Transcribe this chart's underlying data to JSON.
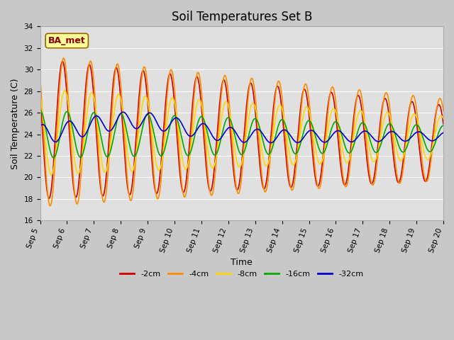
{
  "title": "Soil Temperatures Set B",
  "xlabel": "Time",
  "ylabel": "Soil Temperature (C)",
  "ylim": [
    16,
    34
  ],
  "annotation_text": "BA_met",
  "annotation_color": "#8B0000",
  "annotation_bg": "#FFFF99",
  "series_colors": [
    "#CC0000",
    "#FF8C00",
    "#FFD700",
    "#00AA00",
    "#0000CC"
  ],
  "series_labels": [
    "-2cm",
    "-4cm",
    "-8cm",
    "-16cm",
    "-32cm"
  ],
  "xtick_labels": [
    "Sep 5",
    "Sep 6",
    "Sep 7",
    "Sep 8",
    "Sep 9",
    "Sep 10",
    "Sep 11",
    "Sep 12",
    "Sep 13",
    "Sep 14",
    "Sep 15",
    "Sep 16",
    "Sep 17",
    "Sep 18",
    "Sep 19",
    "Sep 20"
  ],
  "grid_color": "#ffffff",
  "fig_bg": "#c8c8c8",
  "ax_bg": "#e0e0e0",
  "title_fontsize": 12,
  "axis_fontsize": 9,
  "tick_fontsize": 7.5,
  "legend_fontsize": 8
}
